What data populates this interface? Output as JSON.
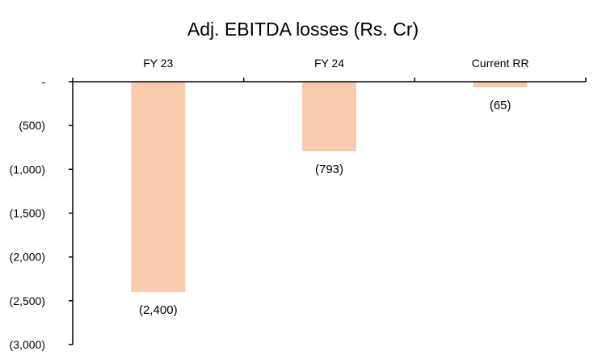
{
  "chart_data": {
    "type": "bar",
    "title": "Adj. EBITDA losses (Rs. Cr)",
    "xlabel": "",
    "ylabel": "",
    "categories": [
      "FY 23",
      "FY 24",
      "Current RR"
    ],
    "values": [
      -2400,
      -793,
      -65
    ],
    "data_labels": [
      "(2,400)",
      "(793)",
      "(65)"
    ],
    "ylim": [
      -3000,
      0
    ],
    "yticks": [
      0,
      -500,
      -1000,
      -1500,
      -2000,
      -2500,
      -3000
    ],
    "ytick_labels": [
      "-",
      "(500)",
      "(1,000)",
      "(1,500)",
      "(2,000)",
      "(2,500)",
      "(3,000)"
    ],
    "category_axis_position": "top",
    "grid": false,
    "legend": "none",
    "bar_color": "#F8CBAD"
  }
}
